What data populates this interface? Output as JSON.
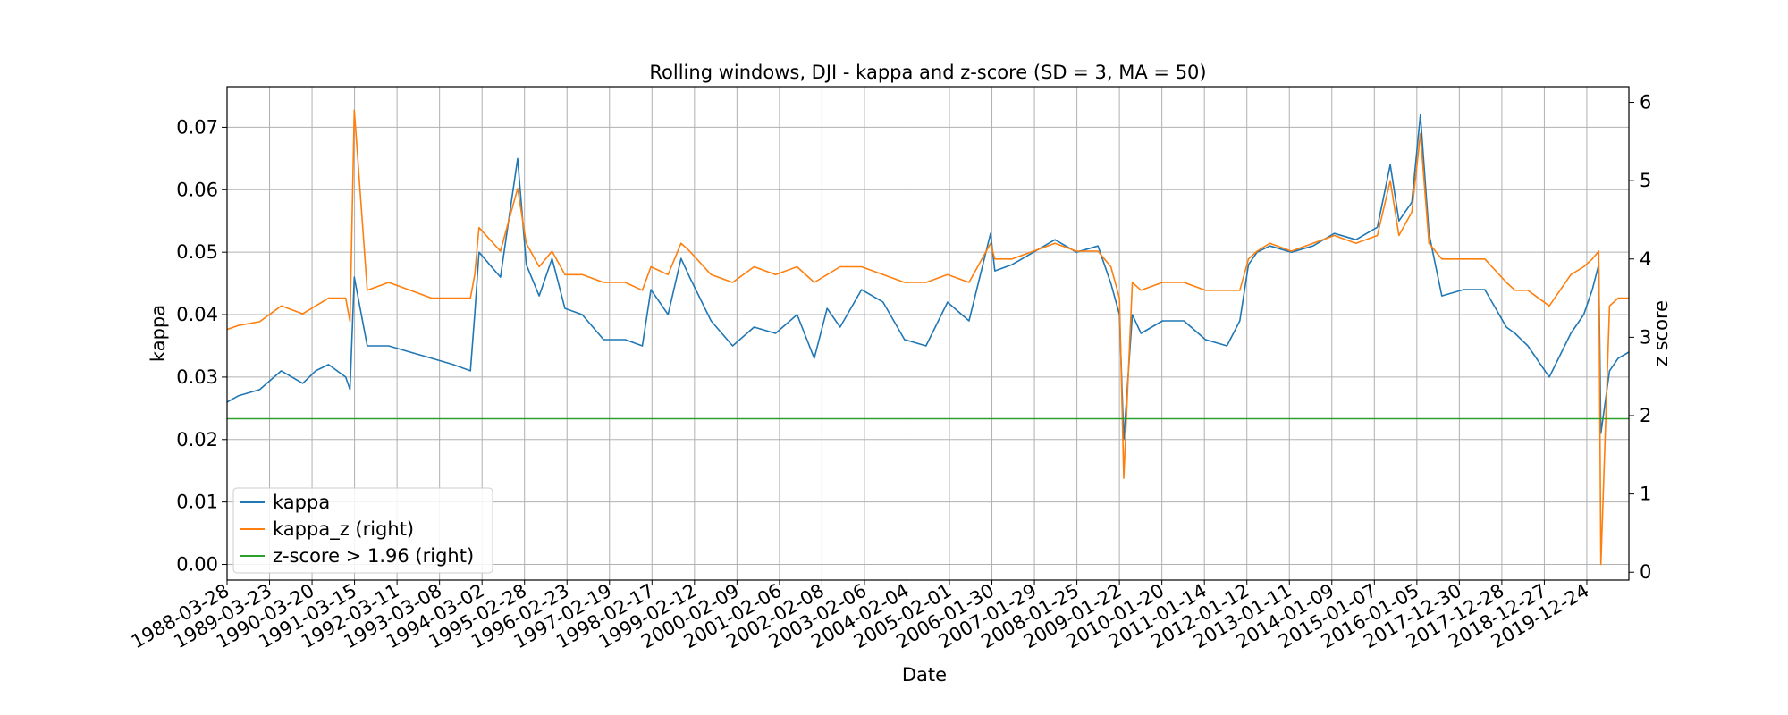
{
  "chart_data": {
    "type": "line",
    "title": "Rolling windows, DJI - kappa and z-score (SD = 3, MA = 50)",
    "xlabel": "Date",
    "ylabel": "kappa",
    "ylabel_right": "z score",
    "grid": true,
    "legend_position": "lower-left",
    "x_tick_labels": [
      "1988-03-28",
      "1989-03-23",
      "1990-03-20",
      "1991-03-15",
      "1992-03-11",
      "1993-03-08",
      "1994-03-02",
      "1995-02-28",
      "1996-02-23",
      "1997-02-19",
      "1998-02-17",
      "1999-02-12",
      "2000-02-09",
      "2001-02-06",
      "2002-02-08",
      "2003-02-06",
      "2004-02-04",
      "2005-02-01",
      "2006-01-30",
      "2007-01-29",
      "2008-01-25",
      "2009-01-22",
      "2010-01-20",
      "2011-01-14",
      "2012-01-12",
      "2013-01-11",
      "2014-01-09",
      "2015-01-07",
      "2016-01-05",
      "2017-12-30",
      "2017-12-28",
      "2018-12-27",
      "2019-12-24"
    ],
    "y_left": {
      "ylim": [
        -0.0025,
        0.0765
      ],
      "ticks": [
        "0.00",
        "0.01",
        "0.02",
        "0.03",
        "0.04",
        "0.05",
        "0.06",
        "0.07"
      ]
    },
    "y_right": {
      "ylim": [
        -0.1,
        6.2
      ],
      "ticks": [
        "0",
        "1",
        "2",
        "3",
        "4",
        "5",
        "6"
      ]
    },
    "series": [
      {
        "name": "kappa",
        "axis": "left",
        "color": "#1f77b4",
        "x": [
          1988.24,
          1988.5,
          1989.0,
          1989.5,
          1990.0,
          1990.3,
          1990.6,
          1991.0,
          1991.1,
          1991.2,
          1991.5,
          1992.0,
          1992.5,
          1993.0,
          1993.5,
          1993.9,
          1994.0,
          1994.1,
          1994.6,
          1995.0,
          1995.2,
          1995.5,
          1995.8,
          1996.1,
          1996.5,
          1997.0,
          1997.5,
          1997.9,
          1998.1,
          1998.5,
          1998.8,
          1999.0,
          1999.5,
          2000.0,
          2000.5,
          2001.0,
          2001.5,
          2001.9,
          2002.2,
          2002.5,
          2003.0,
          2003.5,
          2004.0,
          2004.5,
          2005.0,
          2005.5,
          2006.0,
          2006.1,
          2006.5,
          2007.0,
          2007.5,
          2008.0,
          2008.5,
          2008.8,
          2009.0,
          2009.1,
          2009.3,
          2009.5,
          2010.0,
          2010.5,
          2011.0,
          2011.5,
          2011.8,
          2012.0,
          2012.2,
          2012.5,
          2013.0,
          2013.5,
          2014.0,
          2014.5,
          2015.0,
          2015.3,
          2015.5,
          2015.8,
          2016.0,
          2016.2,
          2016.5,
          2017.0,
          2017.5,
          2018.0,
          2018.2,
          2018.5,
          2019.0,
          2019.5,
          2019.8,
          2020.0,
          2020.15,
          2020.2,
          2020.4,
          2020.6,
          2020.85
        ],
        "y": [
          0.026,
          0.027,
          0.028,
          0.031,
          0.029,
          0.031,
          0.032,
          0.03,
          0.028,
          0.046,
          0.035,
          0.035,
          0.034,
          0.033,
          0.032,
          0.031,
          0.04,
          0.05,
          0.046,
          0.065,
          0.048,
          0.043,
          0.049,
          0.041,
          0.04,
          0.036,
          0.036,
          0.035,
          0.044,
          0.04,
          0.049,
          0.046,
          0.039,
          0.035,
          0.038,
          0.037,
          0.04,
          0.033,
          0.041,
          0.038,
          0.044,
          0.042,
          0.036,
          0.035,
          0.042,
          0.039,
          0.053,
          0.047,
          0.048,
          0.05,
          0.052,
          0.05,
          0.051,
          0.045,
          0.04,
          0.02,
          0.04,
          0.037,
          0.039,
          0.039,
          0.036,
          0.035,
          0.039,
          0.048,
          0.05,
          0.051,
          0.05,
          0.051,
          0.053,
          0.052,
          0.054,
          0.064,
          0.055,
          0.058,
          0.072,
          0.053,
          0.043,
          0.044,
          0.044,
          0.038,
          0.037,
          0.035,
          0.03,
          0.037,
          0.04,
          0.044,
          0.048,
          0.021,
          0.031,
          0.033,
          0.034
        ]
      },
      {
        "name": "kappa_z (right)",
        "axis": "right",
        "color": "#ff7f0e",
        "x": [
          1988.24,
          1988.5,
          1989.0,
          1989.5,
          1990.0,
          1990.3,
          1990.6,
          1991.0,
          1991.1,
          1991.2,
          1991.5,
          1992.0,
          1992.5,
          1993.0,
          1993.5,
          1993.9,
          1994.0,
          1994.1,
          1994.6,
          1995.0,
          1995.2,
          1995.5,
          1995.8,
          1996.1,
          1996.5,
          1997.0,
          1997.5,
          1997.9,
          1998.1,
          1998.5,
          1998.8,
          1999.0,
          1999.5,
          2000.0,
          2000.5,
          2001.0,
          2001.5,
          2001.9,
          2002.2,
          2002.5,
          2003.0,
          2003.5,
          2004.0,
          2004.5,
          2005.0,
          2005.5,
          2006.0,
          2006.1,
          2006.5,
          2007.0,
          2007.5,
          2008.0,
          2008.5,
          2008.8,
          2009.0,
          2009.1,
          2009.3,
          2009.5,
          2010.0,
          2010.5,
          2011.0,
          2011.5,
          2011.8,
          2012.0,
          2012.2,
          2012.5,
          2013.0,
          2013.5,
          2014.0,
          2014.5,
          2015.0,
          2015.3,
          2015.5,
          2015.8,
          2016.0,
          2016.2,
          2016.5,
          2017.0,
          2017.5,
          2018.0,
          2018.2,
          2018.5,
          2019.0,
          2019.5,
          2019.8,
          2020.0,
          2020.15,
          2020.2,
          2020.4,
          2020.6,
          2020.85
        ],
        "y": [
          3.1,
          3.15,
          3.2,
          3.4,
          3.3,
          3.4,
          3.5,
          3.5,
          3.2,
          5.9,
          3.6,
          3.7,
          3.6,
          3.5,
          3.5,
          3.5,
          3.8,
          4.4,
          4.1,
          4.9,
          4.2,
          3.9,
          4.1,
          3.8,
          3.8,
          3.7,
          3.7,
          3.6,
          3.9,
          3.8,
          4.2,
          4.1,
          3.8,
          3.7,
          3.9,
          3.8,
          3.9,
          3.7,
          3.8,
          3.9,
          3.9,
          3.8,
          3.7,
          3.7,
          3.8,
          3.7,
          4.2,
          4.0,
          4.0,
          4.1,
          4.2,
          4.1,
          4.1,
          3.9,
          3.5,
          1.2,
          3.7,
          3.6,
          3.7,
          3.7,
          3.6,
          3.6,
          3.6,
          4.0,
          4.1,
          4.2,
          4.1,
          4.2,
          4.3,
          4.2,
          4.3,
          5.0,
          4.3,
          4.6,
          5.6,
          4.2,
          4.0,
          4.0,
          4.0,
          3.7,
          3.6,
          3.6,
          3.4,
          3.8,
          3.9,
          4.0,
          4.1,
          0.1,
          3.4,
          3.5,
          3.5
        ]
      },
      {
        "name": "z-score > 1.96 (right)",
        "axis": "right",
        "color": "#2ca02c",
        "x": [
          1988.24,
          2020.85
        ],
        "y": [
          1.96,
          1.96
        ]
      }
    ]
  }
}
